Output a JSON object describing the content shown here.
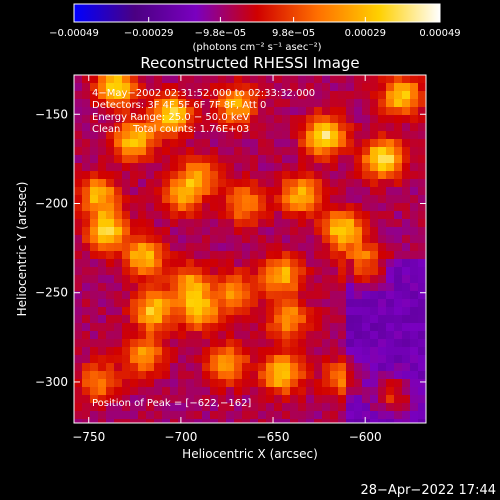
{
  "chart_data": {
    "type": "heatmap",
    "title": "Reconstructed RHESSI Image",
    "xlabel": "Heliocentric X (arcsec)",
    "ylabel": "Heliocentric Y (arcsec)",
    "xlim": [
      -758,
      -567
    ],
    "ylim": [
      -323,
      -128
    ],
    "xticks": [
      -750,
      -700,
      -650,
      -600
    ],
    "xtick_labels": [
      "−750",
      "−700",
      "−650",
      "−600"
    ],
    "yticks": [
      -150,
      -200,
      -250,
      -300
    ],
    "ytick_labels": [
      "−150",
      "−200",
      "−250",
      "−300"
    ],
    "colorbar": {
      "range": [
        -0.00049,
        0.00049
      ],
      "ticks": [
        -0.00049,
        -0.00029,
        -9.8e-05,
        9.8e-05,
        0.00029,
        0.00049
      ],
      "tick_labels": [
        "−0.00049",
        "−0.00029",
        "−9.8e−05",
        "9.8e−05",
        "0.00029",
        "0.00049"
      ],
      "unit_label": "(photons cm⁻² s⁻¹ asec⁻²)",
      "colors": [
        "#0000ff",
        "#4b0082",
        "#7a00c0",
        "#d00000",
        "#ff7000",
        "#ffd000",
        "#ffffff"
      ]
    },
    "annotations": [
      "4−May−2002 02:31:52.000 to 02:33:32.000",
      "Detectors: 3F 4F 5F 6F 7F 8F, Att 0",
      "Energy Range: 25.0 − 50.0 keV",
      "Clean    Total counts: 1.76E+03"
    ],
    "peak_label": "Position of Peak = [−622,−162]",
    "peak": [
      -622,
      -162
    ],
    "hotspots": [
      {
        "x": -735,
        "y": -135,
        "v": 0.00042
      },
      {
        "x": -705,
        "y": -150,
        "v": 0.00045
      },
      {
        "x": -725,
        "y": -165,
        "v": 0.0004
      },
      {
        "x": -745,
        "y": -195,
        "v": 0.00035
      },
      {
        "x": -700,
        "y": -195,
        "v": 0.0003
      },
      {
        "x": -740,
        "y": -215,
        "v": 0.00044
      },
      {
        "x": -720,
        "y": -230,
        "v": 0.00038
      },
      {
        "x": -690,
        "y": -185,
        "v": 0.00028
      },
      {
        "x": -670,
        "y": -145,
        "v": 0.00036
      },
      {
        "x": -665,
        "y": -200,
        "v": 0.0003
      },
      {
        "x": -622,
        "y": -162,
        "v": 0.00049
      },
      {
        "x": -635,
        "y": -195,
        "v": 0.00036
      },
      {
        "x": -612,
        "y": -215,
        "v": 0.00042
      },
      {
        "x": -590,
        "y": -175,
        "v": 0.00048
      },
      {
        "x": -580,
        "y": -140,
        "v": 0.0004
      },
      {
        "x": -600,
        "y": -235,
        "v": 0.00033
      },
      {
        "x": -695,
        "y": -245,
        "v": 0.0003
      },
      {
        "x": -715,
        "y": -260,
        "v": 0.0004
      },
      {
        "x": -690,
        "y": -260,
        "v": 0.00036
      },
      {
        "x": -670,
        "y": -250,
        "v": 0.0003
      },
      {
        "x": -645,
        "y": -240,
        "v": 0.00036
      },
      {
        "x": -642,
        "y": -265,
        "v": 0.00032
      },
      {
        "x": -645,
        "y": -295,
        "v": 0.00042
      },
      {
        "x": -675,
        "y": -290,
        "v": 0.00032
      },
      {
        "x": -720,
        "y": -285,
        "v": 0.0003
      },
      {
        "x": -745,
        "y": -300,
        "v": 0.00026
      },
      {
        "x": -612,
        "y": -298,
        "v": 0.00025
      },
      {
        "x": -585,
        "y": -308,
        "v": 0.00024
      }
    ]
  },
  "footer": {
    "timestamp": "28−Apr−2022 17:44"
  }
}
